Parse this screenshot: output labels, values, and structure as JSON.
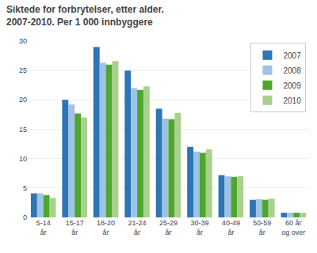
{
  "chart_data": {
    "type": "bar",
    "title": "Siktede for forbrytelser, etter alder. 2007-2010. Per 1 000 innbyggere",
    "categories": [
      "5-14\når",
      "15-17\når",
      "18-20\når",
      "21-24\når",
      "25-29\når",
      "30-39\når",
      "40-49\når",
      "50-59\når",
      "60 år\nog over"
    ],
    "series": [
      {
        "name": "2007",
        "color": "#2e75b6",
        "values": [
          4.1,
          20.0,
          29.0,
          25.0,
          18.5,
          12.0,
          7.2,
          3.0,
          0.8
        ]
      },
      {
        "name": "2008",
        "color": "#9dc3e6",
        "values": [
          4.1,
          19.2,
          26.3,
          22.0,
          16.8,
          11.2,
          7.0,
          3.1,
          0.8
        ]
      },
      {
        "name": "2009",
        "color": "#4ea72c",
        "values": [
          3.8,
          17.7,
          26.0,
          21.7,
          16.7,
          11.0,
          6.9,
          3.0,
          0.8
        ]
      },
      {
        "name": "2010",
        "color": "#a9d18e",
        "values": [
          3.3,
          17.0,
          26.6,
          22.3,
          17.8,
          11.6,
          7.0,
          3.2,
          0.8
        ]
      }
    ],
    "ylim": [
      0,
      30
    ],
    "yticks": [
      0,
      5,
      10,
      15,
      20,
      25,
      30
    ],
    "grid": true,
    "legend": "upper right"
  }
}
